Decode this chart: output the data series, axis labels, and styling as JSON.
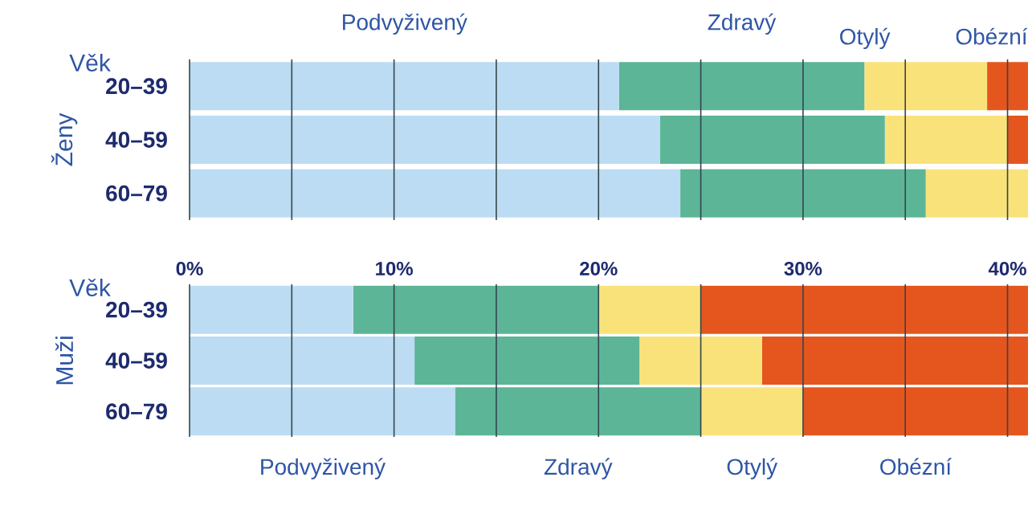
{
  "chart_data": [
    {
      "type": "bar",
      "orientation": "horizontal",
      "stacked": true,
      "ylabel": "Ženy",
      "annotations": [
        "Věk"
      ],
      "categories": [
        "20–39",
        "40–59",
        "60–79"
      ],
      "series": [
        {
          "name": "Podvyživený",
          "color": "#bcdcf3",
          "values": [
            21,
            23,
            24
          ]
        },
        {
          "name": "Zdravý",
          "color": "#5cb597",
          "values": [
            12,
            11,
            12
          ]
        },
        {
          "name": "Otylý",
          "color": "#fae27a",
          "values": [
            6,
            6,
            5
          ]
        },
        {
          "name": "Obézní",
          "color": "#e5561f",
          "values": [
            2,
            1,
            null
          ]
        }
      ],
      "xlim": [
        0,
        41
      ],
      "xticks": [
        {
          "value": 0,
          "label": null
        },
        {
          "value": 5,
          "label": null
        },
        {
          "value": 10,
          "label": null
        },
        {
          "value": 15,
          "label": null
        },
        {
          "value": 20,
          "label": null
        },
        {
          "value": 25,
          "label": null
        },
        {
          "value": 30,
          "label": null
        },
        {
          "value": 35,
          "label": null
        },
        {
          "value": 40,
          "label": null
        }
      ],
      "grid": "x",
      "tick_labels": "y"
    },
    {
      "type": "bar",
      "orientation": "horizontal",
      "stacked": true,
      "ylabel": "Muži",
      "annotations": [
        "Věk"
      ],
      "categories": [
        "20–39",
        "40–59",
        "60–79"
      ],
      "series": [
        {
          "name": "Podvyživený",
          "color": "#bcdcf3",
          "values": [
            8,
            11,
            13
          ]
        },
        {
          "name": "Zdravý",
          "color": "#5cb597",
          "values": [
            12,
            11,
            12
          ]
        },
        {
          "name": "Otylý",
          "color": "#fae27a",
          "values": [
            5,
            6,
            5
          ]
        },
        {
          "name": "Obézní",
          "color": "#e5561f",
          "values": [
            16,
            13,
            11
          ]
        }
      ],
      "xlim": [
        0,
        41
      ],
      "xticks": [
        {
          "value": 0,
          "label": "0%"
        },
        {
          "value": 5,
          "label": null
        },
        {
          "value": 10,
          "label": "10%"
        },
        {
          "value": 15,
          "label": null
        },
        {
          "value": 20,
          "label": "20%"
        },
        {
          "value": 25,
          "label": null
        },
        {
          "value": 30,
          "label": "30%"
        },
        {
          "value": 35,
          "label": null
        },
        {
          "value": 40,
          "label": "40%"
        }
      ],
      "grid": "x"
    }
  ]
}
